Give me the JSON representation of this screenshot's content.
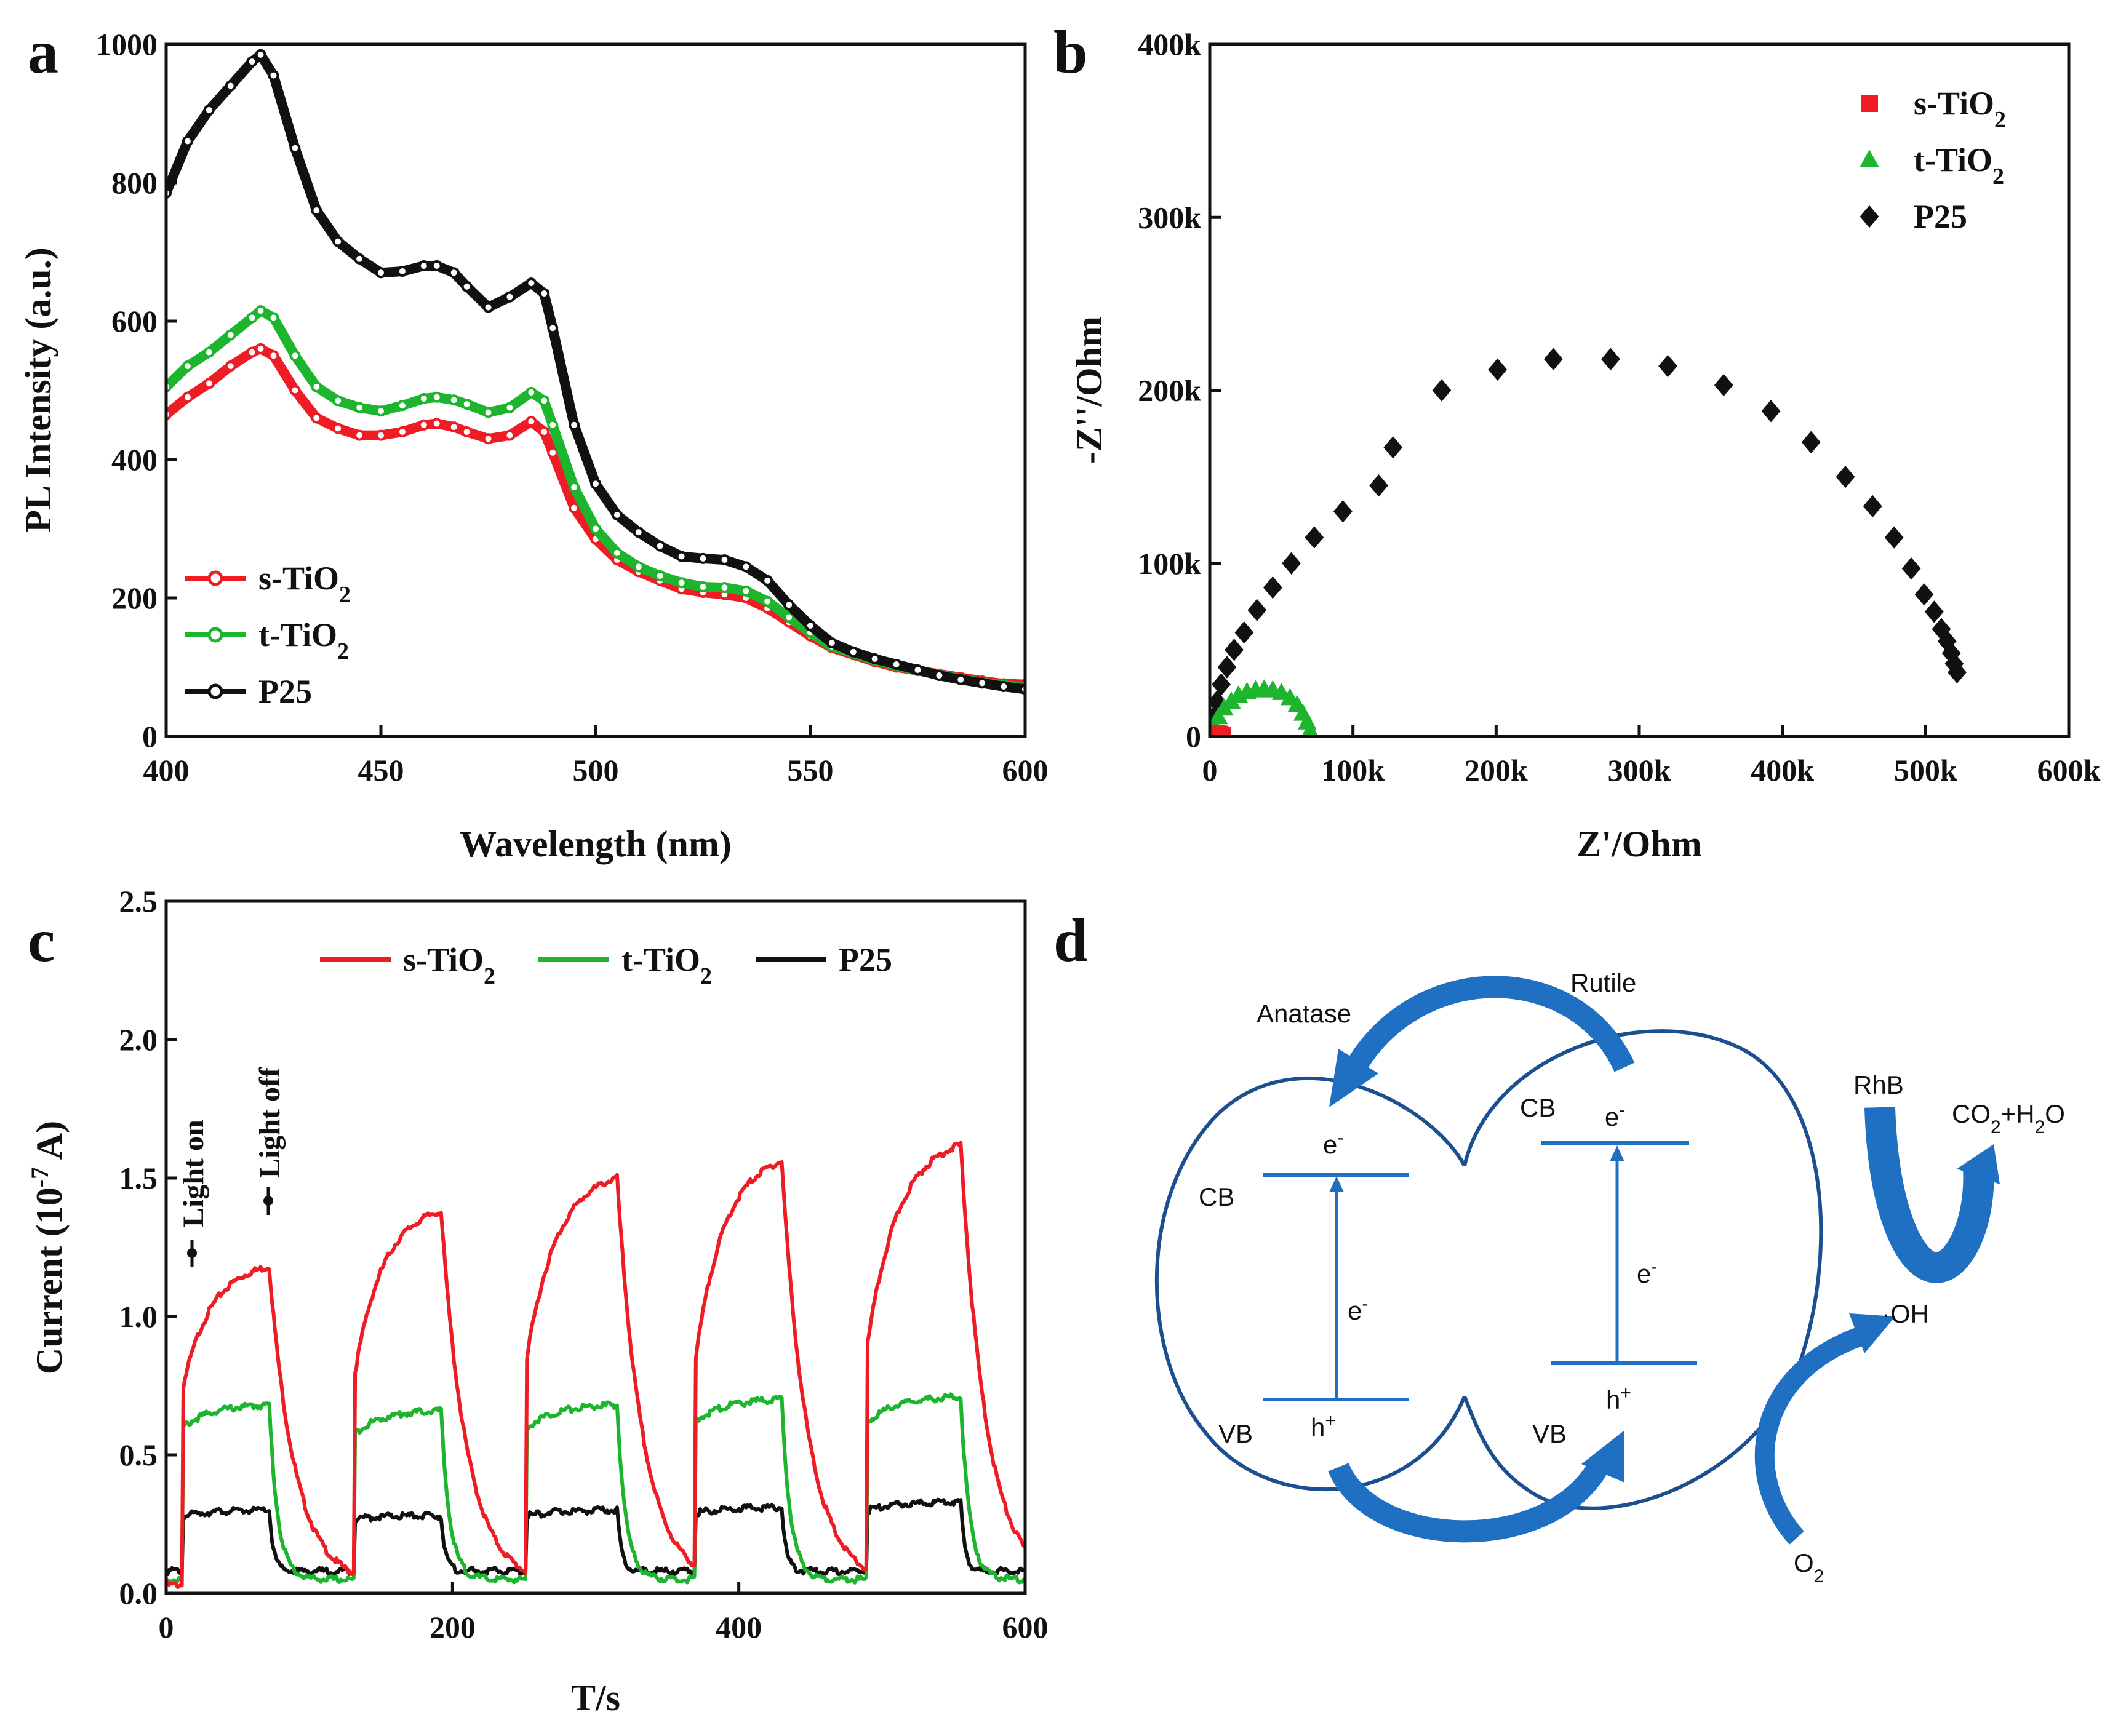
{
  "colors": {
    "s_tio2": "#ee1c25",
    "t_tio2": "#1db52e",
    "p25": "#111111",
    "diagram_blue": "#1b4f8f",
    "diagram_arrow": "#1f6fc2"
  },
  "panels": {
    "a": {
      "letter": "a"
    },
    "b": {
      "letter": "b"
    },
    "c": {
      "letter": "c"
    },
    "d": {
      "letter": "d"
    }
  },
  "chart_data": [
    {
      "id": "a",
      "type": "line",
      "xlabel": "Wavelength (nm)",
      "ylabel": "PL Intensity (a.u.)",
      "xlim": [
        400,
        600
      ],
      "ylim": [
        0,
        1000
      ],
      "xticks": [
        400,
        450,
        500,
        550,
        600
      ],
      "yticks": [
        0,
        200,
        400,
        600,
        800,
        1000
      ],
      "legend": {
        "position": "lower-left",
        "entries": [
          {
            "base": "s-TiO",
            "sub": "2"
          },
          {
            "base": "t-TiO",
            "sub": "2"
          },
          {
            "base": "P25",
            "sub": ""
          }
        ]
      },
      "series": [
        {
          "name": "s-TiO2",
          "x": [
            400,
            405,
            410,
            415,
            420,
            422,
            425,
            430,
            435,
            440,
            445,
            450,
            455,
            460,
            463,
            467,
            470,
            475,
            480,
            485,
            488,
            490,
            495,
            500,
            505,
            510,
            515,
            520,
            525,
            530,
            535,
            540,
            545,
            550,
            555,
            560,
            565,
            570,
            575,
            580,
            585,
            590,
            595,
            600
          ],
          "y": [
            465,
            490,
            510,
            535,
            555,
            560,
            550,
            500,
            460,
            445,
            435,
            435,
            440,
            450,
            452,
            447,
            440,
            430,
            435,
            455,
            440,
            410,
            330,
            285,
            255,
            238,
            225,
            213,
            208,
            205,
            200,
            185,
            165,
            145,
            128,
            118,
            108,
            100,
            95,
            90,
            85,
            80,
            76,
            75
          ]
        },
        {
          "name": "t-TiO2",
          "x": [
            400,
            405,
            410,
            415,
            420,
            422,
            425,
            430,
            435,
            440,
            445,
            450,
            455,
            460,
            463,
            467,
            470,
            475,
            480,
            485,
            488,
            490,
            495,
            500,
            505,
            510,
            515,
            520,
            525,
            530,
            535,
            540,
            545,
            550,
            555,
            560,
            565,
            570,
            575,
            580,
            585,
            590,
            595,
            600
          ],
          "y": [
            505,
            535,
            555,
            580,
            605,
            615,
            605,
            550,
            505,
            485,
            475,
            470,
            478,
            488,
            490,
            486,
            480,
            468,
            475,
            497,
            485,
            450,
            360,
            300,
            265,
            245,
            232,
            222,
            216,
            215,
            210,
            195,
            172,
            150,
            130,
            120,
            110,
            102,
            95,
            89,
            83,
            78,
            74,
            70
          ]
        },
        {
          "name": "P25",
          "x": [
            400,
            405,
            410,
            415,
            420,
            422,
            425,
            430,
            435,
            440,
            445,
            450,
            455,
            460,
            463,
            467,
            470,
            475,
            480,
            485,
            488,
            490,
            495,
            500,
            505,
            510,
            515,
            520,
            525,
            530,
            535,
            540,
            545,
            550,
            555,
            560,
            565,
            570,
            575,
            580,
            585,
            590,
            595,
            600
          ],
          "y": [
            785,
            860,
            905,
            940,
            975,
            985,
            955,
            850,
            760,
            715,
            690,
            670,
            672,
            680,
            680,
            670,
            650,
            620,
            635,
            655,
            640,
            590,
            450,
            365,
            320,
            295,
            275,
            260,
            257,
            255,
            245,
            225,
            190,
            160,
            135,
            122,
            112,
            104,
            96,
            88,
            82,
            77,
            72,
            68
          ]
        }
      ]
    },
    {
      "id": "b",
      "type": "scatter",
      "xlabel": "Z'/Ohm",
      "ylabel": "-Z''/Ohm",
      "xlim": [
        0,
        600000
      ],
      "ylim": [
        0,
        400000
      ],
      "xticks": [
        0,
        100000,
        200000,
        300000,
        400000,
        500000,
        600000
      ],
      "xticklabels": [
        "0",
        "100k",
        "200k",
        "300k",
        "400k",
        "500k",
        "600k"
      ],
      "yticks": [
        0,
        100000,
        200000,
        300000,
        400000
      ],
      "yticklabels": [
        "0",
        "100k",
        "200k",
        "300k",
        "400k"
      ],
      "legend": {
        "position": "top-right",
        "entries": [
          {
            "base": "s-TiO",
            "sub": "2"
          },
          {
            "base": "t-TiO",
            "sub": "2"
          },
          {
            "base": "P25",
            "sub": ""
          }
        ]
      },
      "series": [
        {
          "name": "s-TiO2",
          "marker": "square",
          "x": [
            1000,
            3000,
            5000,
            7000,
            9000
          ],
          "y": [
            400,
            1200,
            1600,
            1200,
            400
          ]
        },
        {
          "name": "t-TiO2",
          "marker": "triangle",
          "x": [
            3000,
            6000,
            10000,
            15000,
            20000,
            26000,
            32000,
            38000,
            44000,
            50000,
            56000,
            61000,
            65000,
            68000,
            70000
          ],
          "y": [
            6000,
            11000,
            16000,
            20000,
            23500,
            25500,
            26500,
            27000,
            26500,
            25000,
            22000,
            18000,
            13000,
            8000,
            3000
          ]
        },
        {
          "name": "P25",
          "marker": "diamond",
          "x": [
            2000,
            5000,
            8000,
            12000,
            17000,
            24000,
            33000,
            44000,
            57000,
            73000,
            93000,
            118000,
            128000,
            162000,
            201000,
            240000,
            280000,
            320000,
            359000,
            392000,
            420000,
            444000,
            463000,
            478000,
            490000,
            499000,
            506000,
            511000,
            515000,
            518000,
            520000,
            522000
          ],
          "y": [
            10000,
            20000,
            30000,
            40000,
            50000,
            60000,
            73000,
            86000,
            100000,
            115000,
            130000,
            145000,
            167000,
            200000,
            212000,
            218000,
            218000,
            214000,
            203000,
            188000,
            170000,
            150000,
            133000,
            115000,
            97000,
            82000,
            72000,
            62000,
            55000,
            48000,
            42000,
            37000
          ]
        }
      ]
    },
    {
      "id": "c",
      "type": "line",
      "xlabel": "T/s",
      "ylabel": "Current (10",
      "ylabel_sup": "-7",
      "ylabel_end": " A)",
      "xlim": [
        0,
        600
      ],
      "ylim": [
        0,
        2.5
      ],
      "xticks": [
        0,
        200,
        400,
        600
      ],
      "yticks": [
        0.0,
        0.5,
        1.0,
        1.5,
        2.0,
        2.5
      ],
      "yticklabels": [
        "0.0",
        "0.5",
        "1.0",
        "1.5",
        "2.0",
        "2.5"
      ],
      "legend": {
        "position": "top-right",
        "entries": [
          {
            "base": "s-TiO",
            "sub": "2"
          },
          {
            "base": "t-TiO",
            "sub": "2"
          },
          {
            "base": "P25",
            "sub": ""
          }
        ]
      },
      "annotations": [
        "Light on",
        "Light off"
      ],
      "on_off_cycles": [
        {
          "on": 12,
          "off": 72
        },
        {
          "on": 132,
          "off": 192
        },
        {
          "on": 252,
          "off": 315
        },
        {
          "on": 370,
          "off": 430
        },
        {
          "on": 490,
          "off": 555
        }
      ],
      "series": [
        {
          "name": "s-TiO2",
          "base": 0.03,
          "peaks": [
            1.18,
            1.38,
            1.5,
            1.56,
            1.62
          ],
          "start": [
            0.75,
            0.8,
            0.85,
            0.85,
            0.9
          ]
        },
        {
          "name": "t-TiO2",
          "base": 0.05,
          "peaks": [
            0.68,
            0.66,
            0.68,
            0.7,
            0.71
          ],
          "start": [
            0.6,
            0.58,
            0.6,
            0.62,
            0.62
          ]
        },
        {
          "name": "P25",
          "base": 0.08,
          "peaks": [
            0.3,
            0.28,
            0.3,
            0.31,
            0.33
          ],
          "start": [
            0.28,
            0.27,
            0.28,
            0.29,
            0.3
          ]
        }
      ]
    }
  ],
  "diagram_d": {
    "anatase": "Anatase",
    "rutile": "Rutile",
    "cb_left": "CB",
    "vb_left": "VB",
    "cb_right": "CB",
    "vb_right": "VB",
    "e_left_top": "e",
    "e_left_mid": "e",
    "h_left": "h",
    "e_right_top": "e",
    "e_right_mid": "e",
    "h_right": "h",
    "minus": "-",
    "plus": "+",
    "rhb": "RhB",
    "co2_h2o": {
      "a": "CO",
      "sub1": "2",
      "b": "+H",
      "sub2": "2",
      "c": "O"
    },
    "oh": "·OH",
    "o2": {
      "a": "O",
      "sub": "2"
    }
  }
}
